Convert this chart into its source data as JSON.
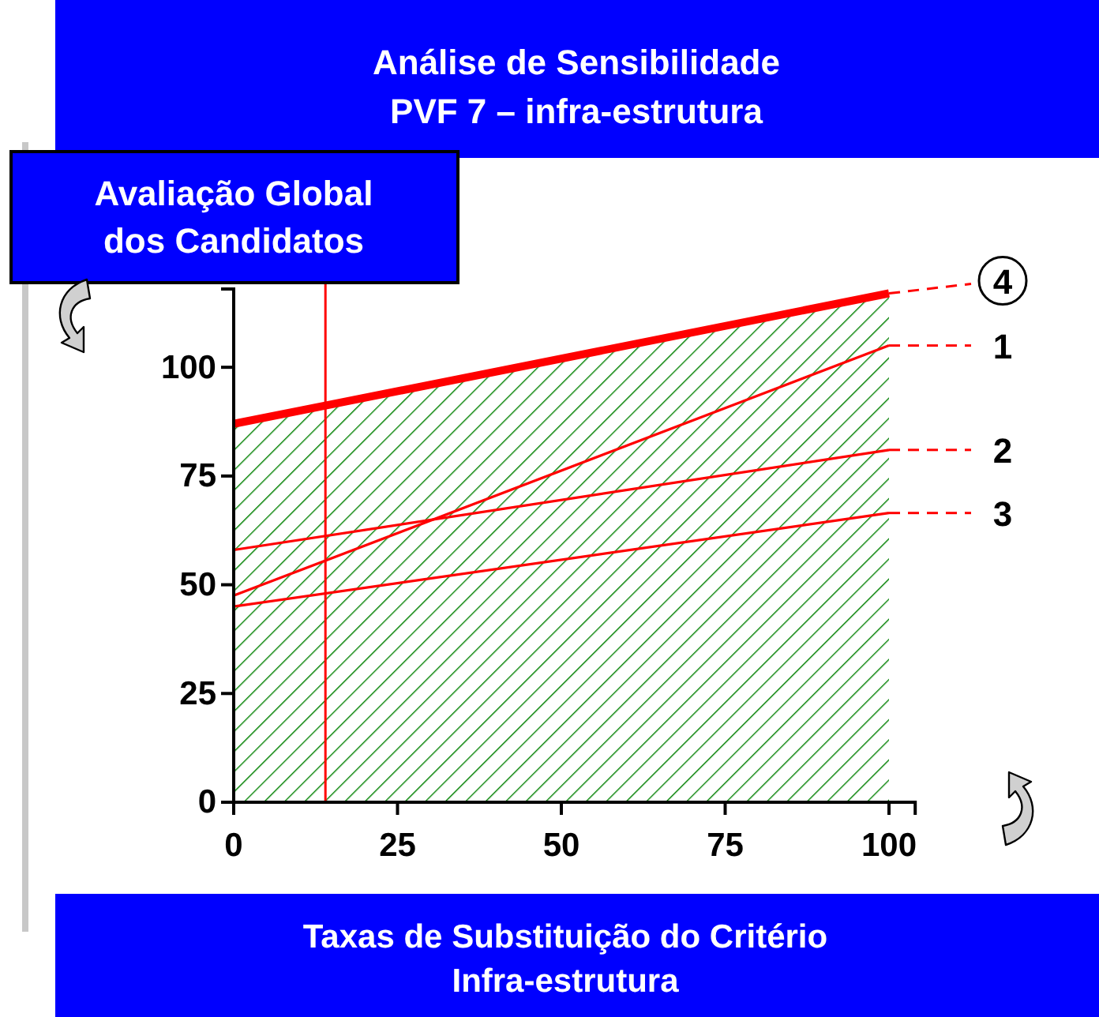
{
  "chart_data": {
    "type": "line",
    "title": "Análise de Sensibilidade",
    "subtitle": "PVF 7 – infra-estrutura",
    "ylabel": "Avaliação Global dos Candidatos",
    "xlabel": "Taxas de Substituição do Critério Infra-estrutura",
    "x": [
      0,
      100
    ],
    "xlim": [
      0,
      104
    ],
    "xticks": [
      0,
      25,
      50,
      75,
      100
    ],
    "ylim": [
      0,
      118
    ],
    "yticks": [
      0,
      25,
      50,
      75,
      100
    ],
    "grid": false,
    "legend": "right",
    "series": [
      {
        "type": "area",
        "color": "#008000",
        "values": [
          87,
          117
        ]
      },
      {
        "name": "4",
        "color": "#ff0000",
        "values": [
          87,
          117
        ]
      },
      {
        "name": "1",
        "color": "#ff0000",
        "values": [
          47.5,
          105
        ]
      },
      {
        "name": "2",
        "color": "#ff0000",
        "values": [
          58,
          81
        ]
      },
      {
        "name": "3",
        "color": "#ff0000",
        "values": [
          45,
          66.5
        ]
      }
    ],
    "ref_lines": [
      {
        "axis": "x",
        "value": 14,
        "color": "#ff0000"
      }
    ]
  }
}
